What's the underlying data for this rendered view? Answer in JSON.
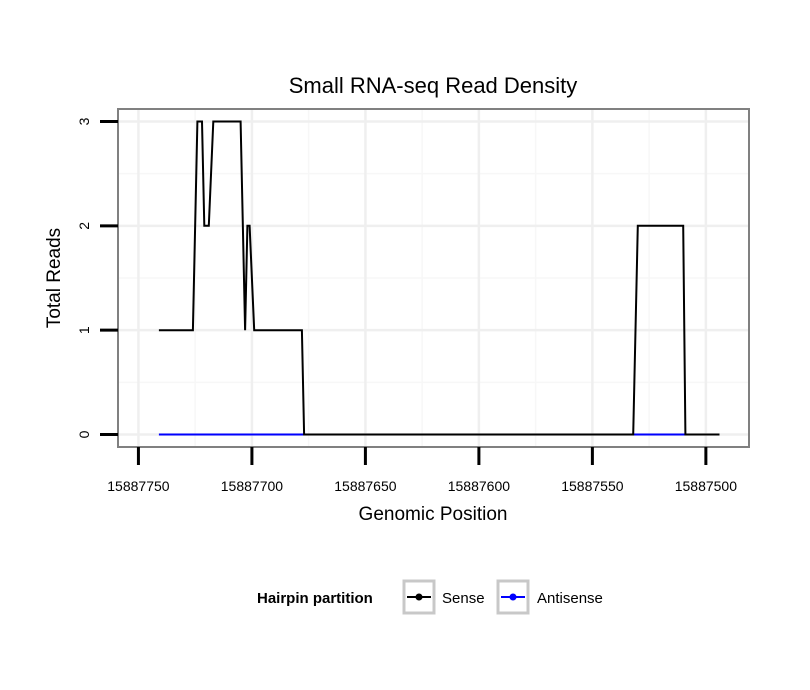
{
  "chart_data": {
    "type": "line",
    "title": "Small RNA-seq Read Density",
    "xlabel": "Genomic Position",
    "ylabel": "Total Reads",
    "x_reversed": true,
    "xlim": [
      15887759,
      15887481
    ],
    "ylim": [
      -0.12,
      3.12
    ],
    "x_ticks": [
      15887750,
      15887700,
      15887650,
      15887600,
      15887550,
      15887500
    ],
    "x_tick_labels": [
      "15887750",
      "15887700",
      "15887650",
      "15887600",
      "15887550",
      "15887500"
    ],
    "y_ticks": [
      0,
      1,
      2,
      3
    ],
    "y_tick_labels": [
      "0",
      "1",
      "2",
      "3"
    ],
    "grid": true,
    "legend_position": "bottom",
    "legend_title": "Hairpin partition",
    "series": [
      {
        "name": "Sense",
        "color": "#000000",
        "x": [
          15887741,
          15887726,
          15887724,
          15887722,
          15887721,
          15887719,
          15887717,
          15887715,
          15887705,
          15887703,
          15887702,
          15887701,
          15887699,
          15887697,
          15887695,
          15887678,
          15887677,
          15887532,
          15887530,
          15887510,
          15887509,
          15887494
        ],
        "y": [
          1,
          1,
          3,
          3,
          2,
          2,
          3,
          3,
          3,
          1,
          2,
          2,
          1,
          1,
          1,
          1,
          0,
          0,
          2,
          2,
          0,
          0
        ]
      },
      {
        "name": "Antisense",
        "color": "#0000ff",
        "x": [
          15887741,
          15887494
        ],
        "y": [
          0,
          0
        ]
      }
    ]
  }
}
